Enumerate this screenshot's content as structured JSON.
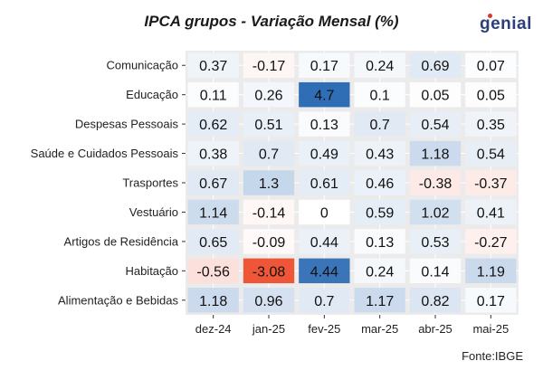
{
  "title": "IPCA grupos - Variação Mensal (%)",
  "logo_text": "genial",
  "source": "Fonte:IBGE",
  "colors": {
    "panel_bg": "#ebebeb",
    "positive_max": "#2f6db5",
    "negative_max": "#ef5637",
    "neutral": "#ffffff",
    "brand": "#2d3f7a",
    "brand_dot": "#d9382a"
  },
  "chart_data": {
    "type": "heatmap",
    "title": "IPCA grupos - Variação Mensal (%)",
    "x_categories": [
      "dez-24",
      "jan-25",
      "fev-25",
      "mar-25",
      "abr-25",
      "mai-25"
    ],
    "y_categories": [
      "Comunicação",
      "Educação",
      "Despesas Pessoais",
      "Saúde e Cuidados Pessoais",
      "Trasportes",
      "Vestuário",
      "Artigos de Residência",
      "Habitação",
      "Alimentação e Bebidas"
    ],
    "values": [
      [
        0.37,
        -0.17,
        0.17,
        0.24,
        0.69,
        0.07
      ],
      [
        0.11,
        0.26,
        4.7,
        0.1,
        0.05,
        0.05
      ],
      [
        0.62,
        0.51,
        0.13,
        0.7,
        0.54,
        0.35
      ],
      [
        0.38,
        0.7,
        0.49,
        0.43,
        1.18,
        0.54
      ],
      [
        0.67,
        1.3,
        0.61,
        0.46,
        -0.38,
        -0.37
      ],
      [
        1.14,
        -0.14,
        0,
        0.59,
        1.02,
        0.41
      ],
      [
        0.65,
        -0.09,
        0.44,
        0.13,
        0.53,
        -0.27
      ],
      [
        -0.56,
        -3.08,
        4.44,
        0.24,
        0.14,
        1.19
      ],
      [
        1.18,
        0.96,
        0.7,
        1.17,
        0.82,
        0.17
      ]
    ],
    "color_scale": {
      "min": -3.08,
      "mid": 0,
      "max": 4.7
    },
    "grid": true,
    "legend": "none"
  }
}
